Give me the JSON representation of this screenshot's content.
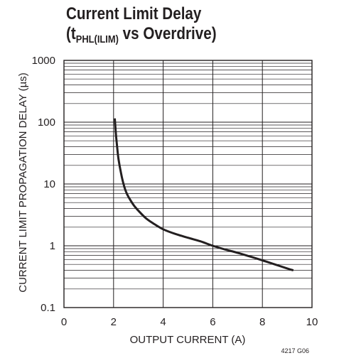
{
  "chart_data": {
    "type": "line",
    "title_line1": "Current Limit Delay",
    "title_line2_prefix": "(t",
    "title_line2_subscript": "PHL(ILIM)",
    "title_line2_suffix": " vs Overdrive)",
    "xlabel": "OUTPUT CURRENT (A)",
    "ylabel": "CURRENT LIMIT PROPAGATION DELAY (µs)",
    "figure_id": "4217 G06",
    "xlim": [
      0,
      10
    ],
    "ylim": [
      0.1,
      1000
    ],
    "yscale": "log",
    "grid": true,
    "x_ticks": [
      0,
      2,
      4,
      6,
      8,
      10
    ],
    "x_tick_labels": [
      "0",
      "2",
      "4",
      "6",
      "8",
      "10"
    ],
    "y_ticks": [
      0.1,
      1,
      10,
      100,
      1000
    ],
    "y_tick_labels": [
      "0.1",
      "1",
      "10",
      "100",
      "1000"
    ],
    "series": [
      {
        "x": [
          2.05,
          2.1,
          2.15,
          2.2,
          2.3,
          2.4,
          2.5,
          2.6,
          2.8,
          3.0,
          3.3,
          3.6,
          4.0,
          4.5,
          5.0,
          5.5,
          6.0,
          6.5,
          7.0,
          7.5,
          8.0,
          8.5,
          9.0,
          9.25
        ],
        "y": [
          115,
          60,
          38,
          25,
          15,
          10,
          7.5,
          6.2,
          4.6,
          3.7,
          2.8,
          2.3,
          1.85,
          1.55,
          1.35,
          1.18,
          1.0,
          0.87,
          0.77,
          0.67,
          0.58,
          0.5,
          0.43,
          0.4
        ]
      }
    ]
  }
}
